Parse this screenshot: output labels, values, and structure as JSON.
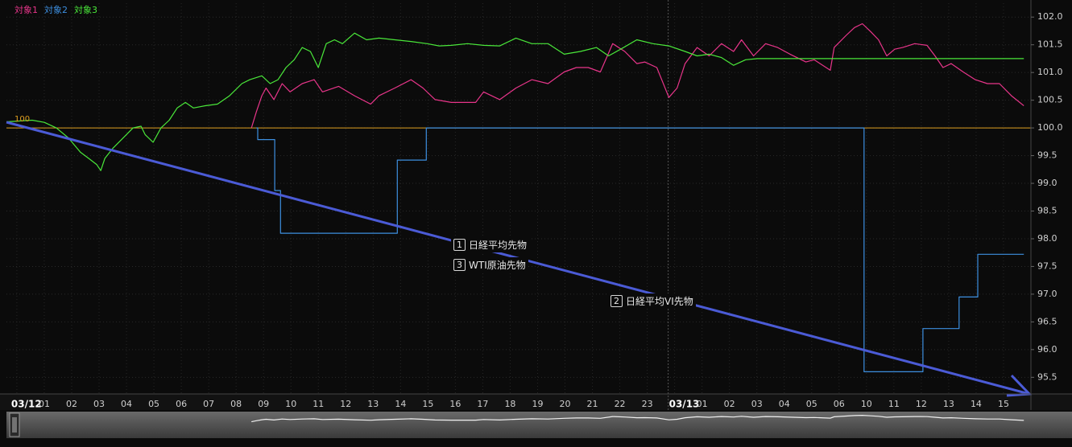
{
  "chart_data": {
    "type": "line",
    "legend": "top-left",
    "grid": true,
    "categories": [
      null,
      "01",
      "02",
      "03",
      "04",
      "05",
      "06",
      "07",
      "08",
      "09",
      "10",
      "11",
      "12",
      "13",
      "14",
      "15",
      "16",
      "17",
      "18",
      "19",
      "20",
      "21",
      "22",
      "23",
      null,
      "01",
      "02",
      "03",
      "04",
      "05",
      "06",
      "10",
      "11",
      "12",
      "13",
      "14",
      "15"
    ],
    "date_labels": [
      "03/12",
      null,
      null,
      null,
      null,
      null,
      null,
      null,
      null,
      null,
      null,
      null,
      null,
      null,
      null,
      null,
      null,
      null,
      null,
      null,
      null,
      null,
      null,
      null,
      "03/13",
      null,
      null,
      null,
      null,
      null,
      null,
      null,
      null,
      null,
      null,
      null,
      null
    ],
    "xlim": [
      -0.38,
      37.0
    ],
    "ylim": [
      95.2,
      102.25
    ],
    "yticks": [
      {
        "value": 95.5,
        "label": "95.5"
      },
      {
        "value": 96,
        "label": "96.0"
      },
      {
        "value": 96.5,
        "label": "96.5"
      },
      {
        "value": 97,
        "label": "97.0"
      },
      {
        "value": 97.5,
        "label": "97.5"
      },
      {
        "value": 98,
        "label": "98.0"
      },
      {
        "value": 98.5,
        "label": "98.5"
      },
      {
        "value": 99,
        "label": "99.0"
      },
      {
        "value": 99.5,
        "label": "99.5"
      },
      {
        "value": 100,
        "label": "100.0"
      },
      {
        "value": 100.5,
        "label": "100.5"
      },
      {
        "value": 101,
        "label": "101.0"
      },
      {
        "value": 101.5,
        "label": "101.5"
      },
      {
        "value": 102,
        "label": "102.0"
      }
    ],
    "baseline": {
      "value": 100,
      "label": "100",
      "color": "#e0a020"
    },
    "series": [
      {
        "name": "対象1",
        "color": "#e8358a",
        "x": [
          8.56,
          8.74,
          8.94,
          9.09,
          9.38,
          9.68,
          9.97,
          10.41,
          10.85,
          11.15,
          11.74,
          12.32,
          12.91,
          13.21,
          13.79,
          14.38,
          14.82,
          15.26,
          15.85,
          16.74,
          17.03,
          17.62,
          18.21,
          18.79,
          19.38,
          19.97,
          20.41,
          20.85,
          21.29,
          21.74,
          22.18,
          22.62,
          22.91,
          23.35,
          23.79,
          24.09,
          24.38,
          24.82,
          25.26,
          25.71,
          26.15,
          26.44,
          26.88,
          27.32,
          27.76,
          28.21,
          28.79,
          29.09,
          29.68,
          29.82,
          30.26,
          30.56,
          30.85,
          31.15,
          31.44,
          31.74,
          32.03,
          32.32,
          32.76,
          33.21,
          33.5,
          33.79,
          34.09,
          34.53,
          34.97,
          35.41,
          35.85,
          36.29,
          36.74
        ],
        "values": [
          100,
          100.29,
          100.58,
          100.72,
          100.51,
          100.8,
          100.65,
          100.8,
          100.87,
          100.65,
          100.75,
          100.58,
          100.43,
          100.58,
          100.72,
          100.87,
          100.72,
          100.51,
          100.46,
          100.46,
          100.65,
          100.51,
          100.72,
          100.87,
          100.8,
          101.01,
          101.09,
          101.09,
          101.01,
          101.52,
          101.38,
          101.16,
          101.19,
          101.09,
          100.55,
          100.72,
          101.16,
          101.45,
          101.3,
          101.52,
          101.38,
          101.59,
          101.3,
          101.52,
          101.45,
          101.33,
          101.19,
          101.23,
          101.04,
          101.45,
          101.67,
          101.81,
          101.88,
          101.74,
          101.59,
          101.3,
          101.42,
          101.45,
          101.52,
          101.49,
          101.3,
          101.09,
          101.16,
          101.01,
          100.87,
          100.8,
          100.8,
          100.58,
          100.4
        ]
      },
      {
        "name": "対象2",
        "color": "#3d8fe0",
        "step": true,
        "x": [
          8.74,
          8.79,
          9.41,
          9.62,
          13.88,
          14.94,
          30.91,
          33.06,
          34.38,
          35.06,
          36.74
        ],
        "values": [
          100,
          99.79,
          98.87,
          98.1,
          99.42,
          100,
          95.6,
          96.38,
          96.95,
          97.72,
          97.72
        ]
      },
      {
        "name": "対象3",
        "color": "#4ae83a",
        "x": [
          -0.38,
          0.56,
          1,
          1.44,
          1.88,
          2.32,
          2.62,
          2.91,
          3.06,
          3.21,
          3.5,
          3.94,
          4.24,
          4.53,
          4.68,
          4.97,
          5.26,
          5.56,
          5.85,
          6.15,
          6.44,
          6.88,
          7.32,
          7.76,
          8.21,
          8.5,
          8.94,
          9.24,
          9.53,
          9.82,
          10.12,
          10.41,
          10.71,
          11,
          11.29,
          11.59,
          11.88,
          12.32,
          12.76,
          13.21,
          13.79,
          14.38,
          14.97,
          15.41,
          15.85,
          16.44,
          17.03,
          17.62,
          18.21,
          18.79,
          19.38,
          19.97,
          20.56,
          21.15,
          21.59,
          22.03,
          22.62,
          23.21,
          23.79,
          24.38,
          24.82,
          25.26,
          25.71,
          26.15,
          26.59,
          27.03,
          36.74
        ],
        "values": [
          100.11,
          100.14,
          100.1,
          100,
          99.82,
          99.56,
          99.45,
          99.34,
          99.23,
          99.45,
          99.63,
          99.85,
          100,
          100.03,
          99.88,
          99.74,
          100,
          100.14,
          100.36,
          100.46,
          100.36,
          100.4,
          100.43,
          100.58,
          100.8,
          100.87,
          100.94,
          100.8,
          100.87,
          101.09,
          101.23,
          101.45,
          101.38,
          101.09,
          101.52,
          101.59,
          101.52,
          101.71,
          101.59,
          101.62,
          101.59,
          101.56,
          101.52,
          101.48,
          101.49,
          101.52,
          101.49,
          101.48,
          101.62,
          101.52,
          101.52,
          101.33,
          101.38,
          101.45,
          101.3,
          101.42,
          101.59,
          101.52,
          101.48,
          101.38,
          101.3,
          101.33,
          101.27,
          101.13,
          101.23,
          101.25,
          101.25
        ]
      }
    ],
    "annotations": [
      {
        "number": 1,
        "text": "日経平均先物"
      },
      {
        "number": 3,
        "text": "WTI原油先物"
      },
      {
        "number": 2,
        "text": "日経平均VI先物"
      }
    ]
  }
}
